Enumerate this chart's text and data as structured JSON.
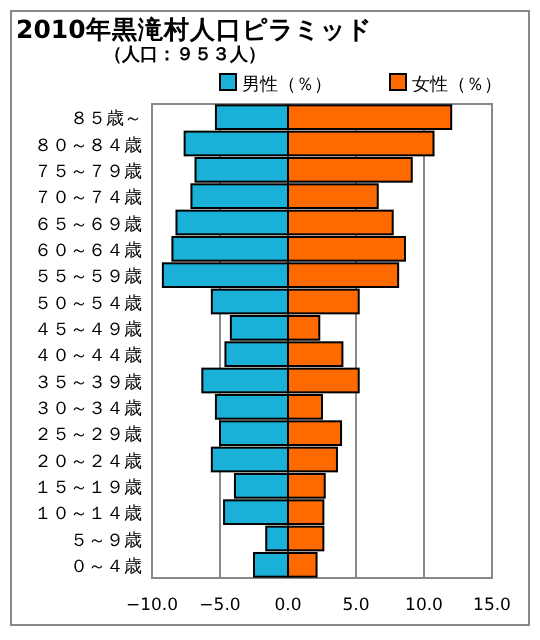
{
  "chart_data": {
    "type": "bar",
    "orientation": "horizontal",
    "stacked": true,
    "title": "2010年黒滝村人口ピラミッド",
    "subtitle": "（人口：９５３人）",
    "categories": [
      "８５歳～",
      "８０～８４歳",
      "７５～７９歳",
      "７０～７４歳",
      "６５～６９歳",
      "６０～６４歳",
      "５５～５９歳",
      "５０～５４歳",
      "４５～４９歳",
      "４０～４４歳",
      "３５～３９歳",
      "３０～３４歳",
      "２５～２９歳",
      "２０～２４歳",
      "１５～１９歳",
      "１０～１４歳",
      "５～９歳",
      "０～４歳"
    ],
    "series": [
      {
        "name": "男性（％）",
        "color": "#1ab0d8",
        "values": [
          -5.3,
          -7.6,
          -6.8,
          -7.1,
          -8.2,
          -8.5,
          -9.2,
          -5.6,
          -4.2,
          -4.6,
          -6.3,
          -5.3,
          -5.0,
          -5.6,
          -3.9,
          -4.7,
          -1.6,
          -2.5
        ]
      },
      {
        "name": "女性（％）",
        "color": "#ff6a00",
        "values": [
          12.0,
          10.7,
          9.1,
          6.6,
          7.7,
          8.6,
          8.1,
          5.2,
          2.3,
          4.0,
          5.2,
          2.5,
          3.9,
          3.6,
          2.7,
          2.6,
          2.6,
          2.1
        ]
      }
    ],
    "xlim": [
      -10,
      15
    ],
    "xticks": [
      {
        "value": -10,
        "label": "−10.0"
      },
      {
        "value": -5,
        "label": "−5.0"
      },
      {
        "value": 0,
        "label": "0.0"
      },
      {
        "value": 5,
        "label": "5.0"
      },
      {
        "value": 10,
        "label": "10.0"
      },
      {
        "value": 15,
        "label": "15.0"
      }
    ],
    "grid": "x",
    "legend": "top"
  }
}
